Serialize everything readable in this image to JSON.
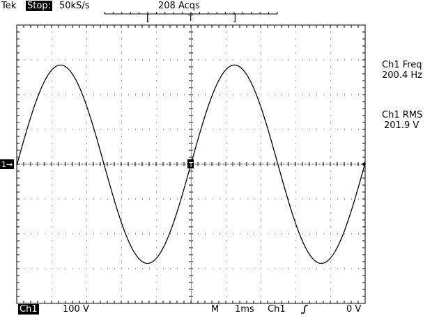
{
  "header": {
    "brand": "Tek",
    "status": "Stop:",
    "sample_rate": "50kS/s",
    "acquisitions": "208 Acqs",
    "trigger_position_marker": "T"
  },
  "measurements": [
    {
      "label": "Ch1 Freq",
      "value": "200.4 Hz"
    },
    {
      "label": "Ch1 RMS",
      "value": "201.9 V"
    }
  ],
  "ground_marker": "1→",
  "trigger_marker": "T",
  "footer": {
    "channel": "Ch1",
    "vertical_scale": "100 V",
    "mode": "M",
    "time_scale": "1ms",
    "trigger_source": "Ch1",
    "trigger_slope_icon": "rising-edge-icon",
    "trigger_level": "0 V"
  },
  "colors": {
    "trace": "#000000",
    "background": "#ffffff"
  },
  "chart_data": {
    "type": "line",
    "title": "",
    "xlabel": "",
    "ylabel": "",
    "x_units": "ms",
    "y_units": "V",
    "xlim": [
      -5,
      5
    ],
    "ylim": [
      -400,
      400
    ],
    "grid": true,
    "series": [
      {
        "shape": "sine",
        "amplitude": 285,
        "frequency_hz": 200.4,
        "phase_deg": 0
      }
    ]
  }
}
